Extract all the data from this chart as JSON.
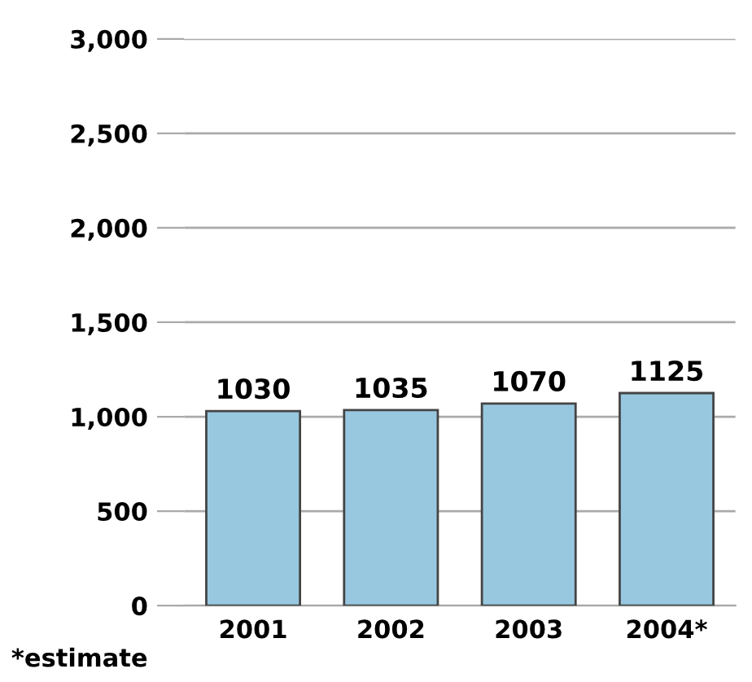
{
  "chart_data": {
    "type": "bar",
    "categories": [
      "2001",
      "2002",
      "2003",
      "2004*"
    ],
    "values": [
      1030,
      1035,
      1070,
      1125
    ],
    "color": "#98c8e0",
    "ylim": [
      0,
      3000
    ],
    "yticks": [
      {
        "value": 0,
        "label": "0"
      },
      {
        "value": 500,
        "label": "500"
      },
      {
        "value": 1000,
        "label": "1,000"
      },
      {
        "value": 1500,
        "label": "1,500"
      },
      {
        "value": 2000,
        "label": "2,000"
      },
      {
        "value": 2500,
        "label": "2,500"
      },
      {
        "value": 3000,
        "label": "3,000"
      }
    ],
    "grid": "y",
    "data_labels": true,
    "annotations": [
      "*estimate"
    ]
  }
}
